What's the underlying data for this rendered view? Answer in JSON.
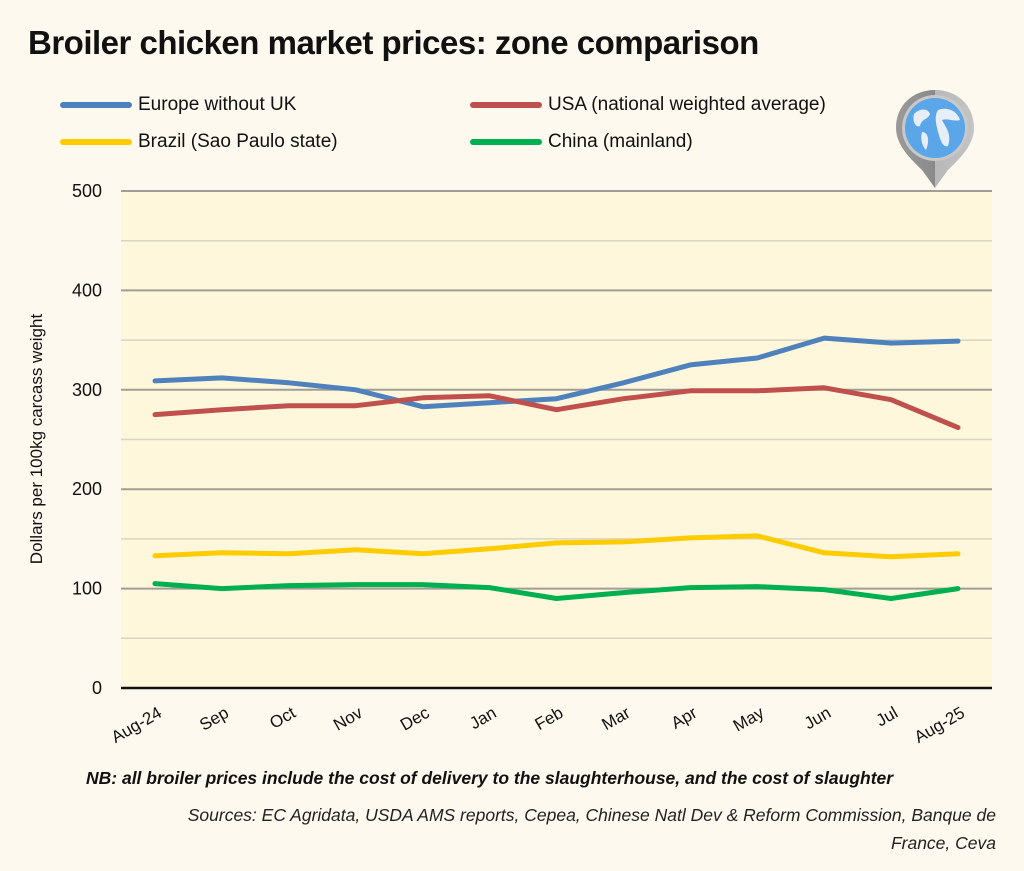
{
  "title": "Broiler chicken market prices: zone comparison",
  "legend": [
    {
      "label": "Europe without UK",
      "color": "#4F81BD"
    },
    {
      "label": "USA (national weighted average)",
      "color": "#C0504D"
    },
    {
      "label": "Brazil (Sao Paulo state)",
      "color": "#FFCC00"
    },
    {
      "label": "China (mainland)",
      "color": "#00B050"
    }
  ],
  "icon": "globe-pin-icon",
  "footer": {
    "note": "NB: all broiler prices include the cost of delivery to the slaughterhouse, and the cost of slaughter",
    "sources_line1": "Sources: EC Agridata, USDA AMS reports, Cepea, Chinese Natl Dev & Reform Commission, Banque de",
    "sources_line2": "France, Ceva"
  },
  "chart_data": {
    "type": "line",
    "title": "Broiler chicken market prices: zone comparison",
    "xlabel": "",
    "ylabel": "Dollars per 100kg carcass weight",
    "ylim": [
      0,
      500
    ],
    "yticks": [
      0,
      100,
      200,
      300,
      400,
      500
    ],
    "minor_gridlines": [
      50,
      150,
      250,
      350,
      450
    ],
    "grid": true,
    "legend_position": "top",
    "categories": [
      "Aug-24",
      "Sep",
      "Oct",
      "Nov",
      "Dec",
      "Jan",
      "Feb",
      "Mar",
      "Apr",
      "May",
      "Jun",
      "Jul",
      "Aug-25"
    ],
    "series": [
      {
        "name": "Europe without UK",
        "color": "#4F81BD",
        "values": [
          309,
          312,
          307,
          300,
          283,
          287,
          291,
          307,
          325,
          332,
          352,
          347,
          349
        ]
      },
      {
        "name": "USA (national weighted average)",
        "color": "#C0504D",
        "values": [
          275,
          280,
          284,
          284,
          292,
          294,
          280,
          291,
          299,
          299,
          302,
          290,
          262
        ]
      },
      {
        "name": "Brazil (Sao Paulo state)",
        "color": "#FFCC00",
        "values": [
          133,
          136,
          135,
          139,
          135,
          140,
          146,
          147,
          151,
          153,
          136,
          132,
          135
        ]
      },
      {
        "name": "China (mainland)",
        "color": "#00B050",
        "values": [
          105,
          100,
          103,
          104,
          104,
          101,
          90,
          96,
          101,
          102,
          99,
          90,
          100
        ]
      }
    ]
  }
}
